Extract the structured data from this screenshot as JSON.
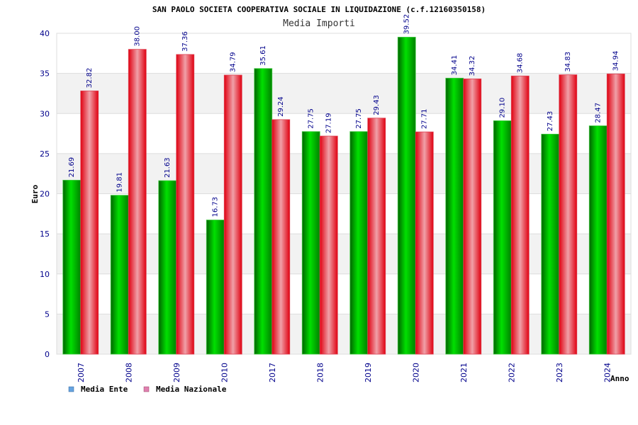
{
  "chart_data": {
    "type": "bar",
    "title": "SAN PAOLO SOCIETA COOPERATIVA SOCIALE IN LIQUIDAZIONE (c.f.12160350158)",
    "subtitle": "Media Importi",
    "xlabel": "Anno",
    "ylabel": "Euro",
    "ylim": [
      0,
      40
    ],
    "yticks": [
      0,
      5,
      10,
      15,
      20,
      25,
      30,
      35,
      40
    ],
    "categories": [
      "2007",
      "2008",
      "2009",
      "2010",
      "2017",
      "2018",
      "2019",
      "2020",
      "2021",
      "2022",
      "2023",
      "2024"
    ],
    "series": [
      {
        "name": "Media Ente",
        "values": [
          21.69,
          19.81,
          21.63,
          16.73,
          35.61,
          27.75,
          27.75,
          39.52,
          34.41,
          29.1,
          27.43,
          28.47
        ],
        "labels": [
          "21.69",
          "19.81",
          "21.63",
          "16.73",
          "35.61",
          "27.75",
          "27.75",
          "39.52",
          "34.41",
          "29.10",
          "27.43",
          "28.47"
        ]
      },
      {
        "name": "Media Nazionale",
        "values": [
          32.82,
          38.0,
          37.36,
          34.79,
          29.24,
          27.19,
          29.43,
          27.71,
          34.32,
          34.68,
          34.83,
          34.94
        ],
        "labels": [
          "32.82",
          "38.00",
          "37.36",
          "34.79",
          "29.24",
          "27.19",
          "29.43",
          "27.71",
          "34.32",
          "34.68",
          "34.83",
          "34.94"
        ]
      }
    ],
    "legend": [
      {
        "label": "Media Ente",
        "color": "#66a3e0"
      },
      {
        "label": "Media Nazionale",
        "color": "#e080b0"
      }
    ],
    "grid": true,
    "legend_position": "bottom-left"
  }
}
